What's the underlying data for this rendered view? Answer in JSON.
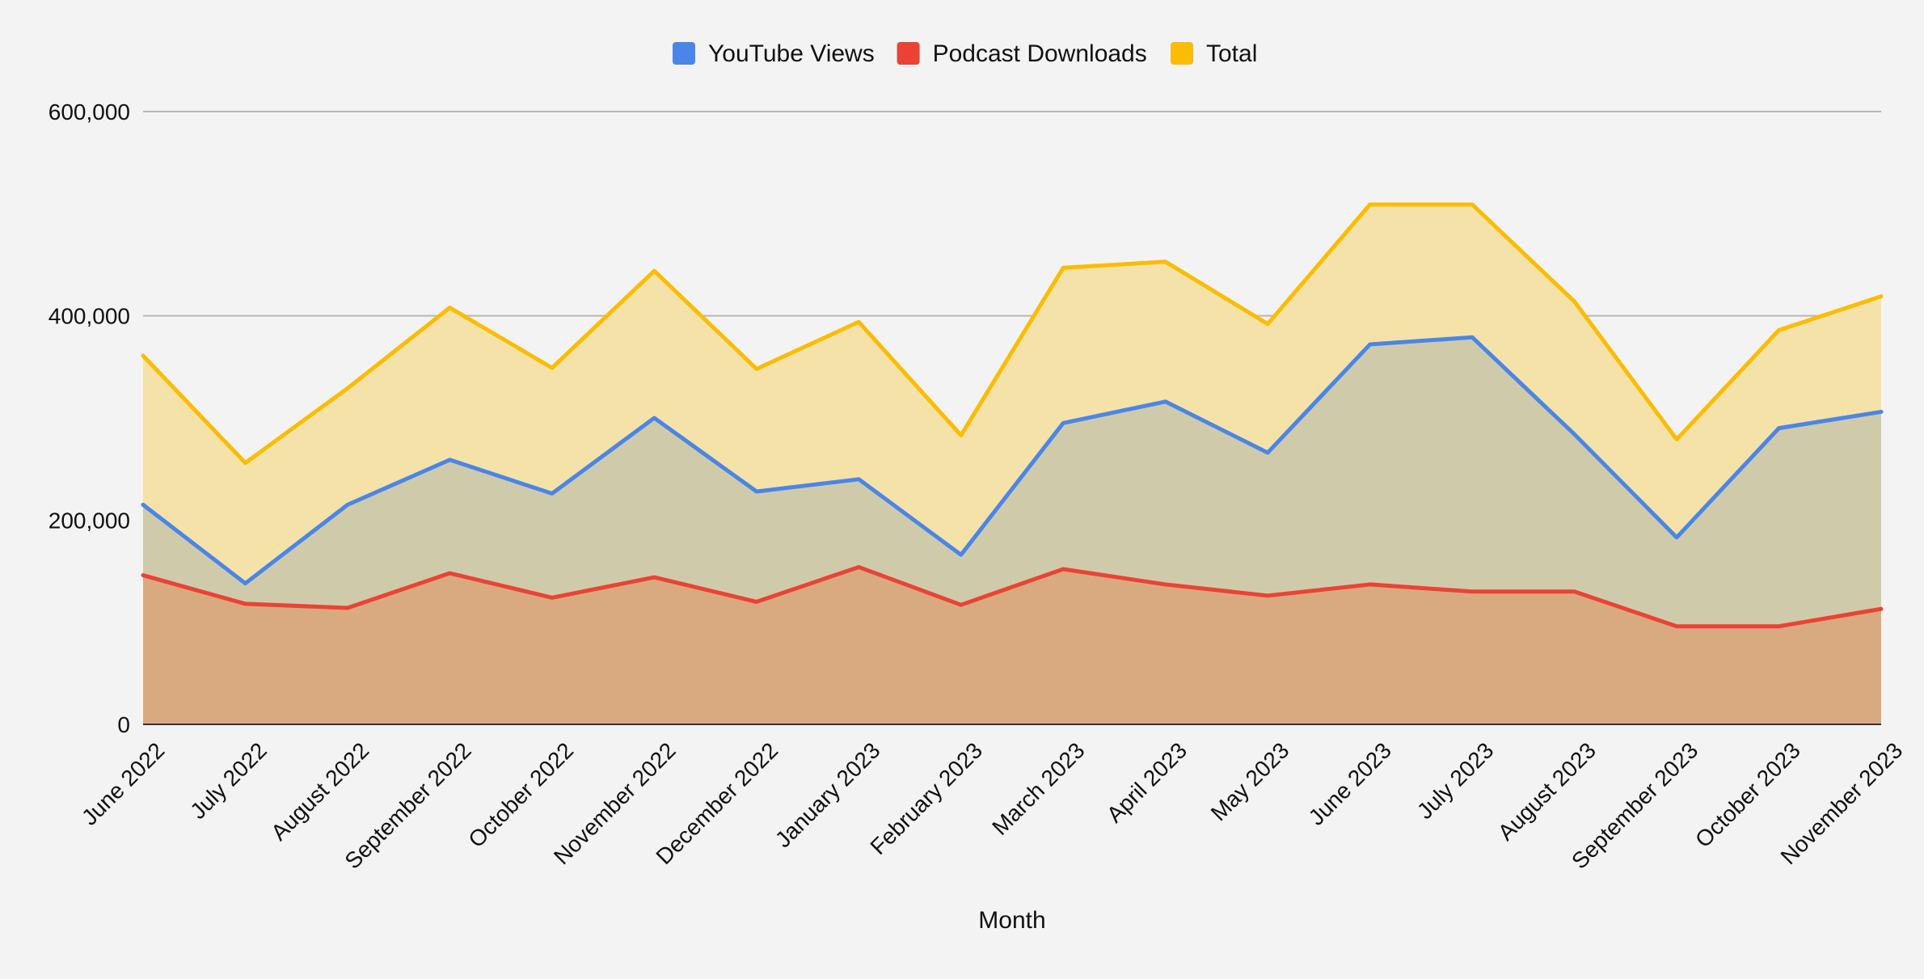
{
  "chart_data": {
    "type": "area",
    "title": "",
    "xlabel": "Month",
    "ylabel": "",
    "categories": [
      "June 2022",
      "July 2022",
      "August 2022",
      "September 2022",
      "October 2022",
      "November 2022",
      "December 2022",
      "January 2023",
      "February 2023",
      "March 2023",
      "April 2023",
      "May 2023",
      "June 2023",
      "July 2023",
      "August 2023",
      "September 2023",
      "October 2023",
      "November 2023"
    ],
    "series": [
      {
        "name": "YouTube Views",
        "color": "#4a86e8",
        "fill": "#cfcbaa",
        "values": [
          215000,
          138000,
          215000,
          259000,
          226000,
          300000,
          228000,
          240000,
          166000,
          295000,
          316000,
          266000,
          372000,
          379000,
          284000,
          183000,
          290000,
          306000
        ]
      },
      {
        "name": "Podcast Downloads",
        "color": "#ea4335",
        "fill": "#d9aa80",
        "values": [
          146000,
          118000,
          114000,
          148000,
          124000,
          144000,
          120000,
          154000,
          117000,
          152000,
          137000,
          126000,
          137000,
          130000,
          130000,
          96000,
          96000,
          113000
        ]
      },
      {
        "name": "Total",
        "color": "#fbbc04",
        "fill": "#f5e2a8",
        "values": [
          361000,
          256000,
          329000,
          408000,
          349000,
          444000,
          348000,
          394000,
          283000,
          447000,
          453000,
          392000,
          509000,
          509000,
          414000,
          279000,
          386000,
          419000
        ]
      }
    ],
    "yticks": [
      "0",
      "200,000",
      "400,000",
      "600,000"
    ],
    "ytick_values": [
      0,
      200000,
      400000,
      600000
    ],
    "ylim": [
      0,
      600000
    ],
    "grid": true,
    "legend_position": "top-center"
  }
}
